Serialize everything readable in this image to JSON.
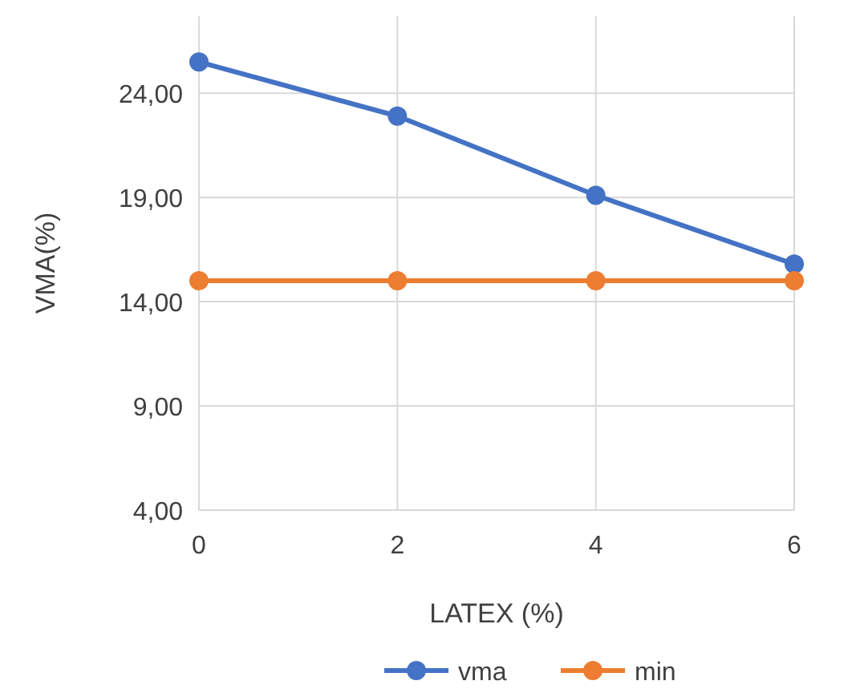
{
  "chart_data": {
    "type": "line",
    "xlabel": "LATEX (%)",
    "ylabel": "VMA(%)",
    "x": [
      0,
      2,
      4,
      6
    ],
    "xlim": [
      0,
      6
    ],
    "xticks": [
      0,
      2,
      4,
      6
    ],
    "ylim": [
      4,
      27.7
    ],
    "yticks": [
      {
        "value": 4,
        "label": "4,00"
      },
      {
        "value": 9,
        "label": "9,00"
      },
      {
        "value": 14,
        "label": "14,00"
      },
      {
        "value": 19,
        "label": "19,00"
      },
      {
        "value": 24,
        "label": "24,00"
      }
    ],
    "series": [
      {
        "name": "vma",
        "color": "#4472c4",
        "values": [
          25.5,
          22.9,
          19.1,
          15.8
        ]
      },
      {
        "name": "min",
        "color": "#ed7d31",
        "values": [
          15,
          15,
          15,
          15
        ]
      }
    ],
    "grid": true,
    "legend": "bottom",
    "marker": "circle",
    "line_style": "solid"
  }
}
